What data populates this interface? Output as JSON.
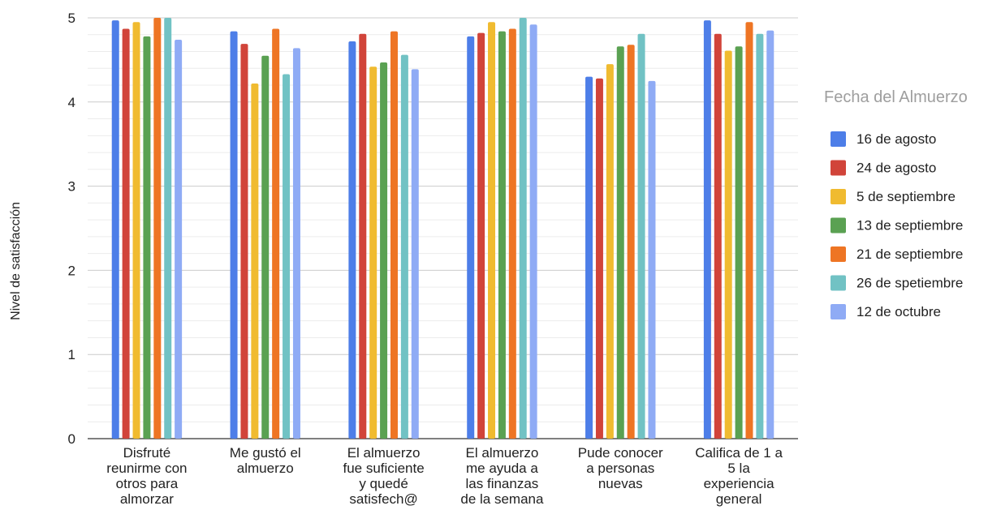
{
  "chart_data": {
    "type": "bar",
    "ylabel": "Nivel de satisfacción",
    "ylim": [
      0,
      5
    ],
    "yticks": [
      "0",
      "1",
      "2",
      "3",
      "4",
      "5"
    ],
    "grid": true,
    "legend_title": "Fecha del Almuerzo",
    "legend_position": "right",
    "categories": [
      [
        "Disfruté",
        "reunirme con",
        "otros para",
        "almorzar"
      ],
      [
        "Me gustó el",
        "almuerzo"
      ],
      [
        "El almuerzo",
        "fue suficiente",
        "y quedé",
        "satisfech@"
      ],
      [
        "El almuerzo",
        "me ayuda a",
        "las finanzas",
        "de la semana"
      ],
      [
        "Pude conocer",
        "a personas",
        "nuevas"
      ],
      [
        "Califica de 1 a",
        "5 la",
        "experiencia",
        "general"
      ]
    ],
    "series": [
      {
        "name": "16 de agosto",
        "color": "#4d7ee8",
        "values": [
          4.97,
          4.84,
          4.72,
          4.78,
          4.3,
          4.97
        ]
      },
      {
        "name": "24 de agosto",
        "color": "#d1443a",
        "values": [
          4.87,
          4.69,
          4.81,
          4.82,
          4.28,
          4.81
        ]
      },
      {
        "name": "5 de septiembre",
        "color": "#f0bb30",
        "values": [
          4.95,
          4.22,
          4.42,
          4.95,
          4.45,
          4.61
        ]
      },
      {
        "name": "13 de septiembre",
        "color": "#5aa152",
        "values": [
          4.78,
          4.55,
          4.47,
          4.84,
          4.66,
          4.66
        ]
      },
      {
        "name": "21 de septiembre",
        "color": "#ee7524",
        "values": [
          5.0,
          4.87,
          4.84,
          4.87,
          4.68,
          4.95
        ]
      },
      {
        "name": "26 de spetiembre",
        "color": "#71c2c4",
        "values": [
          5.0,
          4.33,
          4.56,
          5.0,
          4.81,
          4.81
        ]
      },
      {
        "name": "12 de octubre",
        "color": "#8fabf5",
        "values": [
          4.74,
          4.64,
          4.39,
          4.92,
          4.25,
          4.85
        ]
      }
    ]
  }
}
